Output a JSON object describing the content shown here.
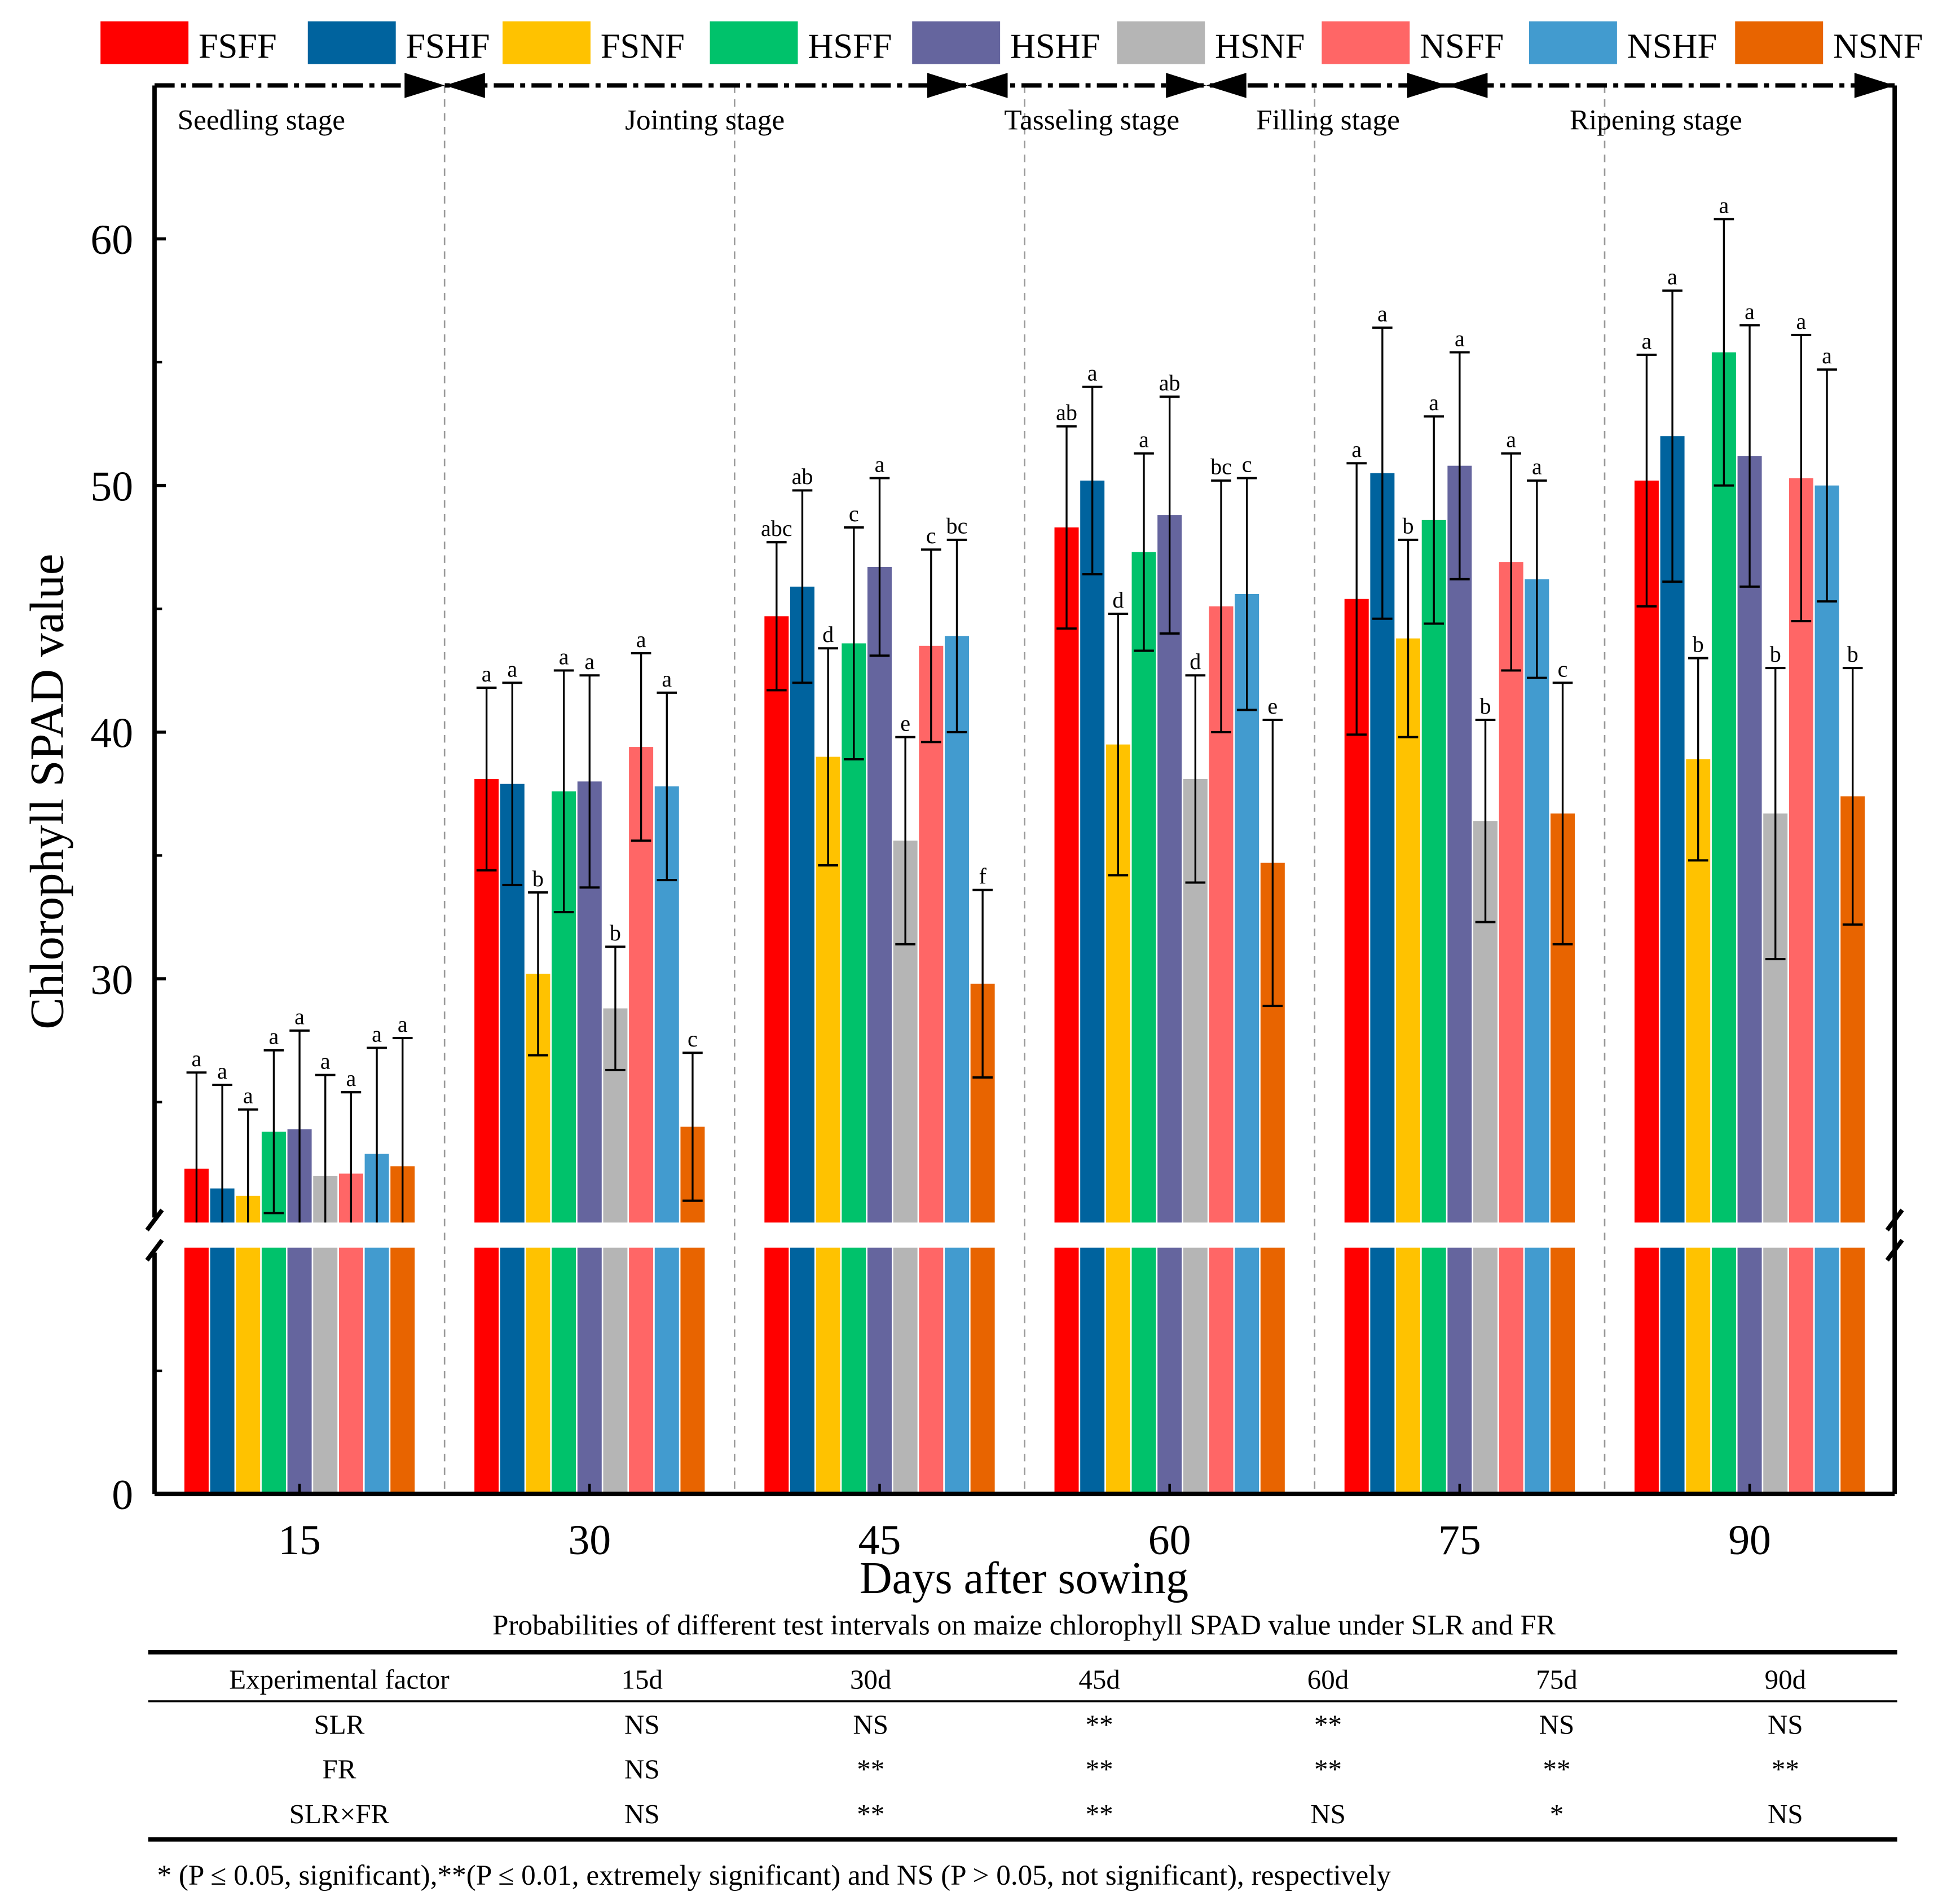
{
  "chart_data": {
    "type": "bar",
    "xlabel": "Days after sowing",
    "ylabel": "Chlorophyll SPAD value",
    "ylim": [
      0,
      66
    ],
    "y_axis_break": [
      20,
      20
    ],
    "y_ticks": [
      0,
      30,
      40,
      50,
      60
    ],
    "grid": false,
    "legend_position": "top",
    "categories": [
      "15",
      "30",
      "45",
      "60",
      "75",
      "90"
    ],
    "stages": [
      "Seedling stage",
      "Jointing stage",
      "Tasseling stage",
      "Filling stage",
      "Ripening stage"
    ],
    "series": [
      {
        "name": "FSFF",
        "color": "#FF0000",
        "values": [
          22.3,
          38.1,
          44.7,
          48.3,
          45.4,
          50.2
        ],
        "errors": [
          3.9,
          3.7,
          3.0,
          4.1,
          5.5,
          5.1
        ],
        "letters": [
          "a",
          "a",
          "abc",
          "ab",
          "a",
          "a"
        ]
      },
      {
        "name": "FSHF",
        "color": "#00639E",
        "values": [
          21.5,
          37.9,
          45.9,
          50.2,
          50.5,
          52.0
        ],
        "errors": [
          4.2,
          4.1,
          3.9,
          3.8,
          5.9,
          5.9
        ],
        "letters": [
          "a",
          "a",
          "ab",
          "a",
          "a",
          "a"
        ]
      },
      {
        "name": "FSNF",
        "color": "#FFC200",
        "values": [
          21.2,
          30.2,
          39.0,
          39.5,
          43.8,
          38.9
        ],
        "errors": [
          3.5,
          3.3,
          4.4,
          5.3,
          4.0,
          4.1
        ],
        "letters": [
          "a",
          "b",
          "d",
          "d",
          "b",
          "b"
        ]
      },
      {
        "name": "HSFF",
        "color": "#00C26B",
        "values": [
          23.8,
          37.6,
          43.6,
          47.3,
          48.6,
          55.4
        ],
        "errors": [
          3.3,
          4.9,
          4.7,
          4.0,
          4.2,
          5.4
        ],
        "letters": [
          "a",
          "a",
          "c",
          "a",
          "a",
          "a"
        ]
      },
      {
        "name": "HSHF",
        "color": "#65659E",
        "values": [
          23.9,
          38.0,
          46.7,
          48.8,
          50.8,
          51.2
        ],
        "errors": [
          4.0,
          4.3,
          3.6,
          4.8,
          4.6,
          5.3
        ],
        "letters": [
          "a",
          "a",
          "a",
          "ab",
          "a",
          "a"
        ]
      },
      {
        "name": "HSNF",
        "color": "#B5B5B5",
        "values": [
          22.0,
          28.8,
          35.6,
          38.1,
          36.4,
          36.7
        ],
        "errors": [
          4.1,
          2.5,
          4.2,
          4.2,
          4.1,
          5.9
        ],
        "letters": [
          "a",
          "b",
          "e",
          "d",
          "b",
          "b"
        ]
      },
      {
        "name": "NSFF",
        "color": "#FF6666",
        "values": [
          22.1,
          39.4,
          43.5,
          45.1,
          46.9,
          50.3
        ],
        "errors": [
          3.3,
          3.8,
          3.9,
          5.1,
          4.4,
          5.8
        ],
        "letters": [
          "a",
          "a",
          "c",
          "bc",
          "a",
          "a"
        ]
      },
      {
        "name": "NSHF",
        "color": "#429BCF",
        "values": [
          22.9,
          37.8,
          43.9,
          45.6,
          46.2,
          50.0
        ],
        "errors": [
          4.3,
          3.8,
          3.9,
          4.7,
          4.0,
          4.7
        ],
        "letters": [
          "a",
          "a",
          "bc",
          "c",
          "a",
          "a"
        ]
      },
      {
        "name": "NSNF",
        "color": "#E86400",
        "values": [
          22.4,
          24.0,
          29.8,
          34.7,
          36.7,
          37.4
        ],
        "errors": [
          5.2,
          3.0,
          3.8,
          5.8,
          5.3,
          5.2
        ],
        "letters": [
          "a",
          "c",
          "f",
          "e",
          "c",
          "b"
        ]
      }
    ]
  },
  "table": {
    "title": "Probabilities of  different test intervals on maize chlorophyll SPAD value under SLR and FR",
    "headers": [
      "Experimental factor",
      "15d",
      "30d",
      "45d",
      "60d",
      "75d",
      "90d"
    ],
    "rows": [
      [
        "SLR",
        "NS",
        "NS",
        "**",
        "**",
        "NS",
        "NS"
      ],
      [
        "FR",
        "NS",
        "**",
        "**",
        "**",
        "**",
        "**"
      ],
      [
        "SLR×FR",
        "NS",
        "**",
        "**",
        "NS",
        "*",
        "NS"
      ]
    ],
    "footnote": "* (P ≤ 0.05, significant),**(P ≤ 0.01, extremely significant) and NS (P > 0.05, not significant), respectively"
  }
}
